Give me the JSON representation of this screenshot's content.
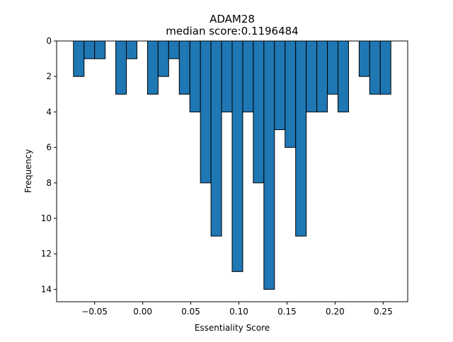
{
  "chart_data": {
    "type": "bar",
    "title": "ADAM28",
    "subtitle": "median score:0.1196484",
    "xlabel": "Essentiality Score",
    "ylabel": "Frequency",
    "xlim": [
      -0.0895,
      0.2755
    ],
    "ylim": [
      0,
      14.7
    ],
    "y_inverted": true,
    "bar_width": 0.011,
    "bar_color": "#1f77b4",
    "edge_color": "#000000",
    "x_ticks": [
      -0.05,
      0.0,
      0.05,
      0.1,
      0.15,
      0.2,
      0.25
    ],
    "x_tick_labels": [
      "−0.05",
      "0.00",
      "0.05",
      "0.10",
      "0.15",
      "0.20",
      "0.25"
    ],
    "y_ticks": [
      0,
      2,
      4,
      6,
      8,
      10,
      12,
      14
    ],
    "y_tick_labels": [
      "0",
      "2",
      "4",
      "6",
      "8",
      "10",
      "12",
      "14"
    ],
    "bars": [
      {
        "x": -0.0665,
        "value": 2
      },
      {
        "x": -0.0555,
        "value": 1
      },
      {
        "x": -0.0445,
        "value": 1
      },
      {
        "x": -0.0225,
        "value": 3
      },
      {
        "x": -0.0115,
        "value": 1
      },
      {
        "x": 0.0105,
        "value": 3
      },
      {
        "x": 0.0215,
        "value": 2
      },
      {
        "x": 0.0325,
        "value": 1
      },
      {
        "x": 0.0435,
        "value": 3
      },
      {
        "x": 0.0545,
        "value": 4
      },
      {
        "x": 0.0655,
        "value": 8
      },
      {
        "x": 0.0765,
        "value": 11
      },
      {
        "x": 0.0875,
        "value": 4
      },
      {
        "x": 0.0985,
        "value": 13
      },
      {
        "x": 0.1095,
        "value": 4
      },
      {
        "x": 0.1205,
        "value": 8
      },
      {
        "x": 0.1315,
        "value": 14
      },
      {
        "x": 0.1425,
        "value": 5
      },
      {
        "x": 0.1535,
        "value": 6
      },
      {
        "x": 0.1645,
        "value": 11
      },
      {
        "x": 0.1755,
        "value": 4
      },
      {
        "x": 0.1865,
        "value": 4
      },
      {
        "x": 0.1975,
        "value": 3
      },
      {
        "x": 0.2085,
        "value": 4
      },
      {
        "x": 0.2305,
        "value": 2
      },
      {
        "x": 0.2415,
        "value": 3
      },
      {
        "x": 0.2525,
        "value": 3
      }
    ]
  }
}
